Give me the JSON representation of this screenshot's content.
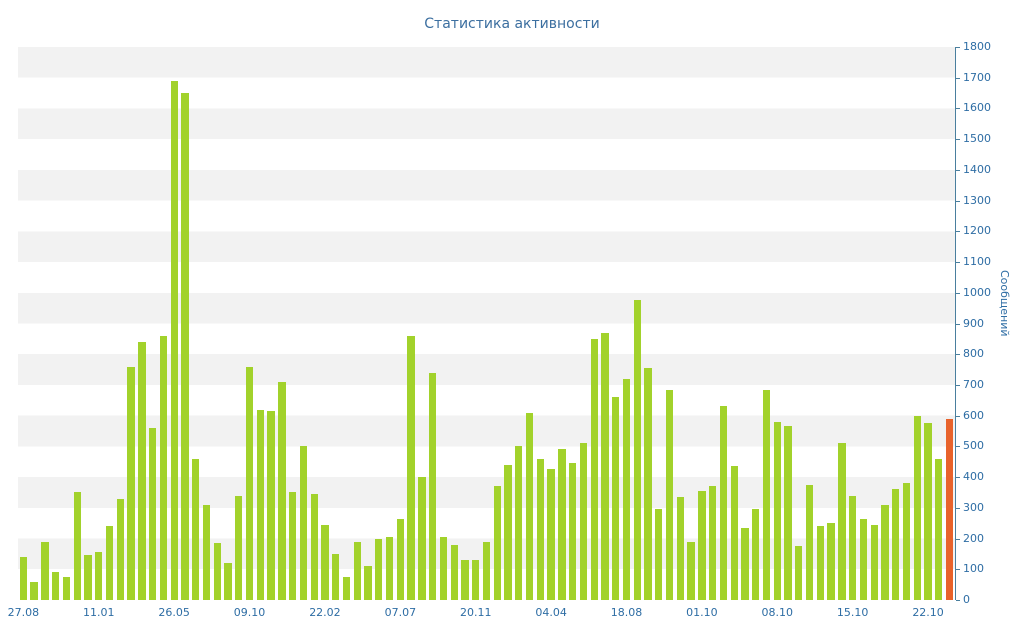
{
  "title": "Статистика активности",
  "chart_data": {
    "type": "bar",
    "title": "Статистика активности",
    "xlabel": "",
    "ylabel": "Сообщений",
    "ylim": [
      0,
      1800
    ],
    "ytick_step": 100,
    "grid": "alternating horizontal 100-unit bands",
    "legend": "none",
    "x_tick_labels": [
      "27.08",
      "11.01",
      "26.05",
      "09.10",
      "22.02",
      "07.07",
      "20.11",
      "04.04",
      "18.08",
      "01.10",
      "08.10",
      "15.10",
      "22.10"
    ],
    "x_tick_every": 7,
    "values": [
      140,
      60,
      190,
      90,
      75,
      350,
      145,
      155,
      240,
      330,
      760,
      840,
      560,
      860,
      1690,
      1650,
      460,
      310,
      185,
      120,
      340,
      760,
      620,
      615,
      710,
      350,
      500,
      345,
      245,
      150,
      75,
      190,
      110,
      200,
      205,
      265,
      860,
      400,
      740,
      205,
      180,
      130,
      130,
      190,
      370,
      440,
      500,
      610,
      460,
      425,
      490,
      445,
      510,
      850,
      870,
      660,
      720,
      975,
      755,
      295,
      685,
      335,
      190,
      355,
      370,
      630,
      435,
      235,
      295,
      685,
      580,
      565,
      175,
      375,
      240,
      250,
      510,
      340,
      265,
      245,
      310,
      360,
      380,
      600,
      575,
      460,
      590
    ],
    "bar_color": "#a2d22b",
    "highlight_index": 86,
    "highlight_color": "#e8632c",
    "axis_color": "#4a7f9e",
    "label_color": "#2e6da4",
    "title_color": "#3c6fa0"
  }
}
